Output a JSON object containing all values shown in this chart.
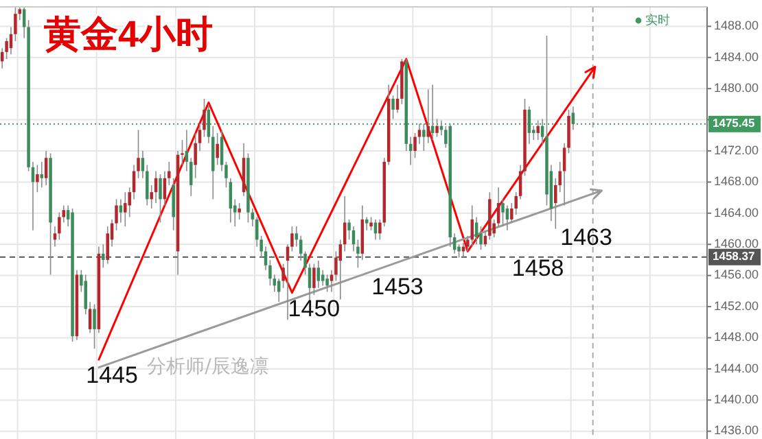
{
  "chart_data": {
    "type": "candlestick",
    "title": "黄金4小时",
    "categories": [
      null,
      null,
      null,
      null,
      null,
      null,
      null,
      null,
      null,
      null,
      null,
      null,
      null,
      null,
      null,
      null,
      null,
      null,
      null,
      null,
      null,
      null,
      null,
      null,
      null,
      null,
      null,
      null,
      null,
      null,
      null,
      null,
      null,
      null,
      null,
      null,
      null,
      null,
      null,
      null,
      null,
      null,
      null,
      null,
      null,
      null,
      null,
      null,
      null,
      null,
      null,
      null,
      null,
      null,
      null,
      null,
      null,
      null,
      null,
      null,
      null,
      null,
      null,
      null,
      null,
      null,
      null,
      null,
      null,
      null,
      null,
      null,
      null,
      null,
      null,
      null,
      null,
      null,
      null,
      null,
      null,
      null,
      null,
      null,
      null,
      null,
      null,
      null,
      null,
      null,
      null,
      null,
      null,
      null,
      null,
      null,
      null,
      null,
      null,
      null,
      null,
      null,
      null,
      null,
      null,
      null,
      null,
      null,
      null,
      null,
      null,
      null,
      null,
      null,
      null,
      null,
      null,
      null,
      null,
      null,
      null,
      null,
      null,
      null,
      null,
      null,
      null,
      null,
      null,
      null,
      null,
      null,
      null,
      null,
      null,
      null,
      null,
      null,
      null,
      null,
      null,
      null,
      null,
      null,
      null,
      null,
      null,
      null,
      null,
      null,
      null,
      null,
      null,
      null,
      null,
      null,
      null,
      null,
      null,
      null,
      null
    ],
    "ohlc": [
      [
        1483.5,
        1485.2,
        1482.6,
        1484.7
      ],
      [
        1484.7,
        1486.5,
        1483.8,
        1486.1
      ],
      [
        1485.2,
        1487.9,
        1484.4,
        1487.0
      ],
      [
        1487.0,
        1490.4,
        1486.1,
        1489.6
      ],
      [
        1489.6,
        1490.4,
        1488.8,
        1490.2
      ],
      [
        1490.2,
        1490.4,
        1486.5,
        1487.9
      ],
      [
        1487.9,
        1488.8,
        1469.4,
        1469.9
      ],
      [
        1469.9,
        1470.6,
        1461.8,
        1468.0
      ],
      [
        1468.0,
        1470.2,
        1466.7,
        1469.0
      ],
      [
        1469.0,
        1470.6,
        1467.3,
        1468.5
      ],
      [
        1468.5,
        1472.0,
        1467.6,
        1471.1
      ],
      [
        1471.1,
        1471.7,
        1456.1,
        1462.8
      ],
      [
        1460.6,
        1462.3,
        1459.7,
        1461.4
      ],
      [
        1461.4,
        1464.1,
        1460.6,
        1463.5
      ],
      [
        1463.5,
        1465.0,
        1462.8,
        1464.4
      ],
      [
        1464.4,
        1465.0,
        1462.3,
        1463.2
      ],
      [
        1464.1,
        1464.6,
        1447.5,
        1448.2
      ],
      [
        1448.2,
        1456.7,
        1447.7,
        1456.1
      ],
      [
        1456.1,
        1456.7,
        1453.9,
        1454.7
      ],
      [
        1455.3,
        1456.1,
        1451.0,
        1451.7
      ],
      [
        1449.1,
        1452.6,
        1448.6,
        1451.7
      ],
      [
        1451.7,
        1452.3,
        1446.6,
        1449.1
      ],
      [
        1449.1,
        1459.7,
        1448.6,
        1458.8
      ],
      [
        1458.8,
        1460.0,
        1457.0,
        1458.0
      ],
      [
        1458.0,
        1462.3,
        1457.5,
        1461.4
      ],
      [
        1460.6,
        1463.2,
        1459.7,
        1462.7
      ],
      [
        1462.7,
        1465.8,
        1461.8,
        1465.0
      ],
      [
        1465.0,
        1465.8,
        1462.8,
        1464.1
      ],
      [
        1464.1,
        1466.7,
        1462.3,
        1465.3
      ],
      [
        1465.0,
        1467.3,
        1463.5,
        1466.7
      ],
      [
        1466.7,
        1470.2,
        1465.8,
        1469.4
      ],
      [
        1469.4,
        1474.7,
        1468.5,
        1471.1
      ],
      [
        1471.1,
        1472.0,
        1468.5,
        1469.4
      ],
      [
        1469.4,
        1470.2,
        1465.0,
        1465.8
      ],
      [
        1465.8,
        1467.6,
        1464.6,
        1466.7
      ],
      [
        1466.7,
        1469.4,
        1465.3,
        1468.5
      ],
      [
        1468.5,
        1469.0,
        1462.8,
        1465.8
      ],
      [
        1465.8,
        1469.4,
        1465.0,
        1468.5
      ],
      [
        1468.5,
        1470.6,
        1467.6,
        1469.4
      ],
      [
        1467.6,
        1468.5,
        1461.8,
        1463.5
      ],
      [
        1459.1,
        1472.0,
        1456.1,
        1471.5
      ],
      [
        1471.5,
        1473.4,
        1470.2,
        1471.7
      ],
      [
        1472.0,
        1474.7,
        1469.4,
        1470.6
      ],
      [
        1470.6,
        1471.1,
        1466.2,
        1467.6
      ],
      [
        1470.2,
        1474.3,
        1468.5,
        1473.0
      ],
      [
        1473.0,
        1475.5,
        1472.0,
        1474.7
      ],
      [
        1474.7,
        1478.7,
        1473.8,
        1477.3
      ],
      [
        1477.3,
        1478.0,
        1473.0,
        1473.8
      ],
      [
        1473.8,
        1475.2,
        1465.8,
        1469.4
      ],
      [
        1471.1,
        1474.3,
        1470.2,
        1472.9
      ],
      [
        1473.8,
        1474.7,
        1469.4,
        1470.2
      ],
      [
        1470.2,
        1470.6,
        1467.3,
        1468.5
      ],
      [
        1468.0,
        1468.5,
        1462.8,
        1464.6
      ],
      [
        1465.0,
        1465.8,
        1462.3,
        1464.1
      ],
      [
        1464.1,
        1465.3,
        1463.2,
        1464.6
      ],
      [
        1466.7,
        1473.0,
        1466.2,
        1471.1
      ],
      [
        1471.1,
        1471.7,
        1462.8,
        1464.1
      ],
      [
        1464.1,
        1464.6,
        1462.3,
        1463.2
      ],
      [
        1463.2,
        1463.5,
        1459.7,
        1460.6
      ],
      [
        1460.6,
        1461.1,
        1458.3,
        1459.1
      ],
      [
        1459.1,
        1459.7,
        1456.7,
        1457.3
      ],
      [
        1457.3,
        1458.0,
        1454.7,
        1455.6
      ],
      [
        1455.6,
        1456.1,
        1453.9,
        1454.7
      ],
      [
        1455.3,
        1455.6,
        1452.6,
        1453.9
      ],
      [
        1455.3,
        1457.5,
        1454.4,
        1457.0
      ],
      [
        1457.9,
        1460.0,
        1450.3,
        1459.7
      ],
      [
        1459.7,
        1462.3,
        1459.1,
        1461.4
      ],
      [
        1461.4,
        1462.3,
        1459.7,
        1460.6
      ],
      [
        1460.6,
        1461.1,
        1457.9,
        1458.8
      ],
      [
        1458.8,
        1459.1,
        1456.1,
        1457.0
      ],
      [
        1457.0,
        1457.5,
        1452.6,
        1454.4
      ],
      [
        1454.4,
        1457.5,
        1453.5,
        1457.0
      ],
      [
        1457.0,
        1457.9,
        1454.4,
        1455.3
      ],
      [
        1456.1,
        1456.7,
        1454.7,
        1455.3
      ],
      [
        1455.6,
        1456.1,
        1453.9,
        1454.7
      ],
      [
        1455.3,
        1456.7,
        1453.9,
        1456.1
      ],
      [
        1456.1,
        1459.1,
        1455.3,
        1458.3
      ],
      [
        1457.9,
        1460.6,
        1452.9,
        1460.0
      ],
      [
        1460.0,
        1466.2,
        1459.1,
        1462.8
      ],
      [
        1462.8,
        1463.2,
        1460.6,
        1461.8
      ],
      [
        1461.8,
        1462.3,
        1459.1,
        1460.0
      ],
      [
        1459.7,
        1460.6,
        1457.0,
        1458.8
      ],
      [
        1458.8,
        1465.0,
        1458.0,
        1463.2
      ],
      [
        1463.2,
        1463.5,
        1461.8,
        1462.7
      ],
      [
        1462.3,
        1463.5,
        1461.8,
        1462.8
      ],
      [
        1462.8,
        1463.2,
        1460.6,
        1461.4
      ],
      [
        1461.4,
        1463.2,
        1460.6,
        1462.8
      ],
      [
        1462.8,
        1471.1,
        1462.3,
        1470.6
      ],
      [
        1470.6,
        1480.5,
        1470.2,
        1478.7
      ],
      [
        1478.7,
        1479.1,
        1476.1,
        1477.3
      ],
      [
        1477.3,
        1480.5,
        1476.9,
        1478.7
      ],
      [
        1478.7,
        1483.8,
        1478.0,
        1483.5
      ],
      [
        1483.5,
        1483.8,
        1472.0,
        1472.9
      ],
      [
        1472.9,
        1473.8,
        1470.2,
        1472.0
      ],
      [
        1472.0,
        1474.3,
        1471.1,
        1473.8
      ],
      [
        1473.8,
        1475.5,
        1472.9,
        1474.7
      ],
      [
        1474.7,
        1475.5,
        1472.0,
        1473.8
      ],
      [
        1473.8,
        1479.9,
        1473.0,
        1475.2
      ],
      [
        1475.2,
        1480.5,
        1473.4,
        1474.3
      ],
      [
        1474.3,
        1476.1,
        1473.8,
        1475.2
      ],
      [
        1475.2,
        1475.9,
        1474.0,
        1474.7
      ],
      [
        1474.7,
        1475.2,
        1472.4,
        1472.9
      ],
      [
        1475.2,
        1475.5,
        1459.7,
        1460.9
      ],
      [
        1460.9,
        1461.4,
        1458.8,
        1459.3
      ],
      [
        1459.7,
        1460.0,
        1458.3,
        1459.1
      ],
      [
        1459.1,
        1460.2,
        1458.4,
        1459.7
      ],
      [
        1459.7,
        1461.1,
        1459.1,
        1460.6
      ],
      [
        1460.6,
        1465.0,
        1459.7,
        1463.2
      ],
      [
        1462.8,
        1463.5,
        1460.0,
        1460.9
      ],
      [
        1461.4,
        1462.3,
        1459.3,
        1460.0
      ],
      [
        1460.0,
        1461.8,
        1459.7,
        1461.1
      ],
      [
        1461.1,
        1466.7,
        1460.6,
        1465.8
      ],
      [
        1461.4,
        1463.2,
        1460.9,
        1462.7
      ],
      [
        1462.7,
        1467.3,
        1462.3,
        1465.3
      ],
      [
        1465.3,
        1465.8,
        1462.3,
        1464.1
      ],
      [
        1464.6,
        1465.0,
        1461.8,
        1463.2
      ],
      [
        1463.2,
        1465.3,
        1462.8,
        1464.6
      ],
      [
        1464.6,
        1466.7,
        1463.8,
        1466.2
      ],
      [
        1466.2,
        1470.2,
        1465.8,
        1469.4
      ],
      [
        1469.4,
        1478.7,
        1468.8,
        1477.3
      ],
      [
        1477.3,
        1477.7,
        1472.9,
        1474.3
      ],
      [
        1474.7,
        1475.2,
        1473.4,
        1474.3
      ],
      [
        1474.3,
        1475.9,
        1473.4,
        1475.2
      ],
      [
        1475.2,
        1476.1,
        1472.9,
        1473.8
      ],
      [
        1473.8,
        1486.8,
        1465.0,
        1466.4
      ],
      [
        1469.4,
        1470.2,
        1463.0,
        1464.6
      ],
      [
        1465.3,
        1468.5,
        1462.0,
        1467.6
      ],
      [
        1467.6,
        1470.6,
        1466.7,
        1469.4
      ],
      [
        1469.4,
        1473.0,
        1465.0,
        1472.4
      ],
      [
        1472.4,
        1477.3,
        1471.7,
        1476.5
      ],
      [
        1476.9,
        1477.7,
        1474.7,
        1475.45
      ],
      null,
      null,
      null,
      null,
      null,
      null,
      null,
      null,
      null,
      null,
      null,
      null,
      null,
      null,
      null,
      null,
      null,
      null,
      null,
      null,
      null,
      null,
      null,
      null,
      null,
      null,
      null,
      null,
      null,
      null
    ],
    "ylim": [
      1435,
      1490.5
    ],
    "yticks": [
      {
        "value": 1436,
        "label": "1436.00"
      },
      {
        "value": 1440,
        "label": "1440.00"
      },
      {
        "value": 1444,
        "label": "1444.00"
      },
      {
        "value": 1448,
        "label": "1448.00"
      },
      {
        "value": 1452,
        "label": "1452.00"
      },
      {
        "value": 1456,
        "label": "1456.00"
      },
      {
        "value": 1460,
        "label": "1460.00"
      },
      {
        "value": 1464,
        "label": "1464.00"
      },
      {
        "value": 1468,
        "label": "1468.00"
      },
      {
        "value": 1472,
        "label": "1472.00"
      },
      {
        "value": 1476,
        "label": null
      },
      {
        "value": 1480,
        "label": "1480.00"
      },
      {
        "value": 1484,
        "label": "1484.00"
      },
      {
        "value": 1488,
        "label": "1488.00"
      }
    ],
    "ref_lines": [
      {
        "axis": "y",
        "value": 1475.45,
        "label": "1475.45",
        "color": "#3f9a5f",
        "line_style": "dotted"
      },
      {
        "axis": "y",
        "value": 1458.37,
        "label": "1458.37",
        "color": "#555555",
        "line_style": "dashed"
      }
    ],
    "annotations": [
      "实时",
      "分析师/辰逸凛",
      "1445",
      "1450",
      "1453",
      "1458",
      "1463"
    ],
    "grid": true,
    "tick_labels": "y"
  }
}
